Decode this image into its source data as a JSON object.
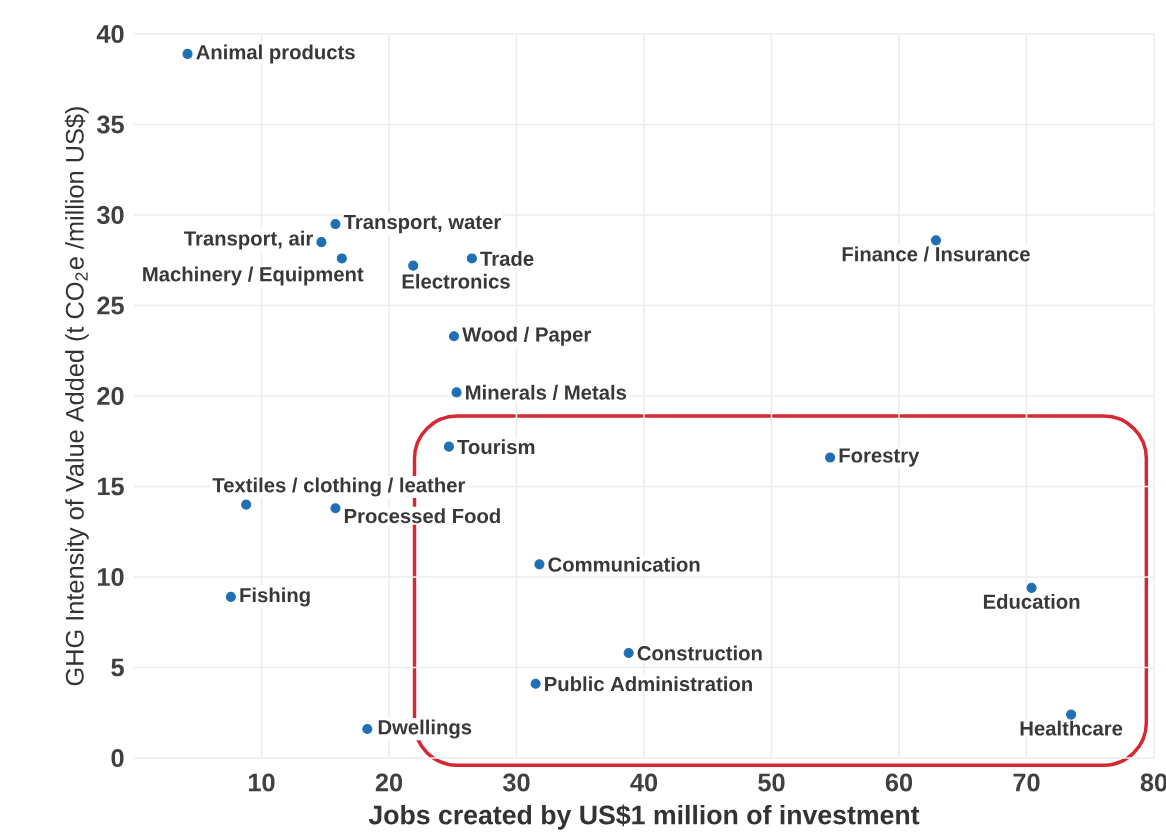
{
  "chart_data": {
    "type": "scatter",
    "xlabel": "Jobs created by US$1 million of investment",
    "ylabel": "GHG Intensity of Value Added (t CO$_{2}$e /million US$)",
    "xlim": [
      0,
      80
    ],
    "xticks": [
      10,
      20,
      30,
      40,
      50,
      60,
      70,
      80
    ],
    "ylim": [
      0,
      40
    ],
    "yticks": [
      0,
      5,
      10,
      15,
      20,
      25,
      30,
      35,
      40
    ],
    "grid": true,
    "series": [
      {
        "color": "#1f6fb4",
        "x": [
          4.2,
          15.8,
          14.7,
          16.3,
          21.9,
          26.5,
          62.9,
          25.1,
          25.3,
          24.7,
          8.8,
          15.8,
          7.6,
          31.8,
          38.8,
          31.5,
          18.3,
          54.6,
          70.4,
          73.5
        ],
        "values": [
          38.9,
          29.5,
          28.5,
          27.6,
          27.2,
          27.6,
          28.6,
          23.3,
          20.2,
          17.2,
          14.0,
          13.8,
          8.9,
          10.7,
          5.8,
          4.1,
          1.6,
          16.6,
          9.4,
          2.4
        ]
      }
    ],
    "annotations": [
      {
        "text": "Animal products",
        "x": 4.2,
        "y": 38.9
      },
      {
        "text": "Transport, water",
        "x": 15.8,
        "y": 29.5
      },
      {
        "text": "Transport, air",
        "x": 14.7,
        "y": 28.5
      },
      {
        "text": "Machinery / Equipment",
        "x": 16.3,
        "y": 27.6
      },
      {
        "text": "Electronics",
        "x": 21.9,
        "y": 27.2
      },
      {
        "text": "Trade",
        "x": 26.5,
        "y": 27.6
      },
      {
        "text": "Finance / Insurance",
        "x": 62.9,
        "y": 28.6
      },
      {
        "text": "Wood / Paper",
        "x": 25.1,
        "y": 23.3
      },
      {
        "text": "Minerals / Metals",
        "x": 25.3,
        "y": 20.2
      },
      {
        "text": "Tourism",
        "x": 24.7,
        "y": 17.2
      },
      {
        "text": "Textiles / clothing / leather",
        "x": 8.8,
        "y": 14.0
      },
      {
        "text": "Processed Food",
        "x": 15.8,
        "y": 13.8
      },
      {
        "text": "Fishing",
        "x": 7.6,
        "y": 8.9
      },
      {
        "text": "Communication",
        "x": 31.8,
        "y": 10.7
      },
      {
        "text": "Construction",
        "x": 38.8,
        "y": 5.8
      },
      {
        "text": "Public Administration",
        "x": 31.5,
        "y": 4.1
      },
      {
        "text": "Dwellings",
        "x": 18.3,
        "y": 1.6
      },
      {
        "text": "Forestry",
        "x": 54.6,
        "y": 16.6
      },
      {
        "text": "Education",
        "x": 70.4,
        "y": 9.4
      },
      {
        "text": "Healthcare",
        "x": 73.5,
        "y": 2.4
      }
    ]
  }
}
